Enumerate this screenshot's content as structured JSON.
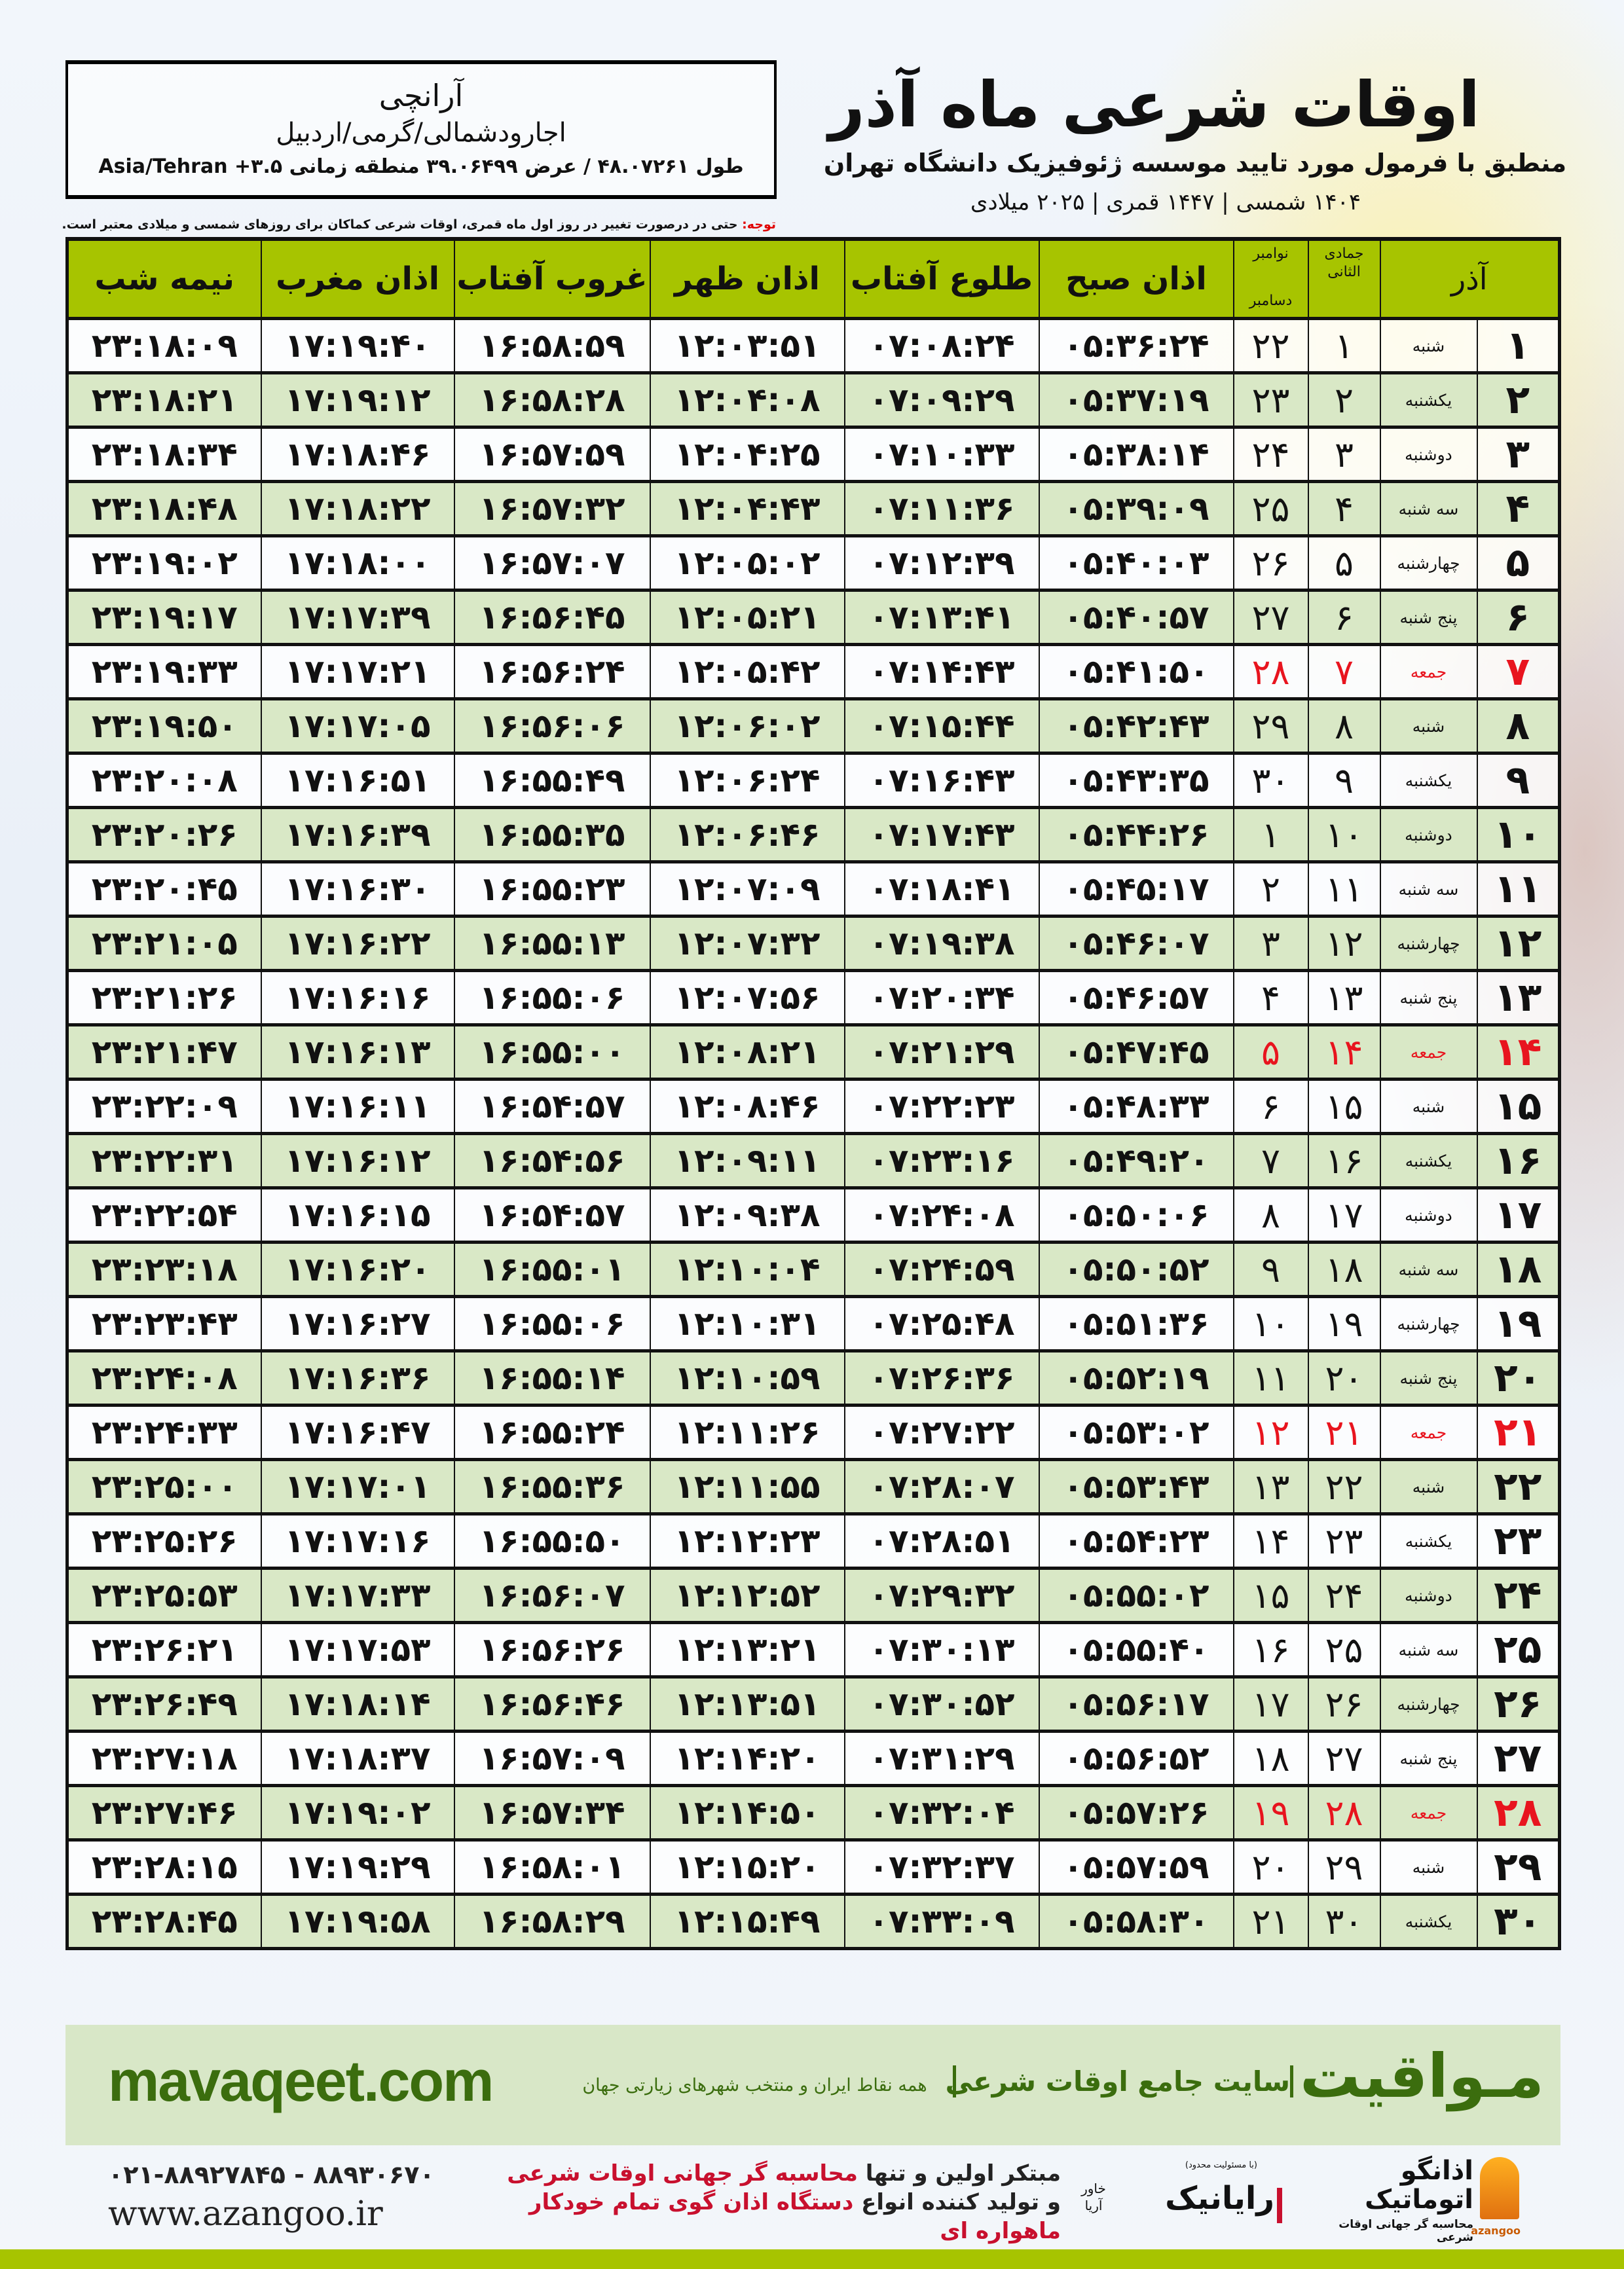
{
  "header": {
    "title": "اوقات شرعی ماه آذر",
    "subtitle": "منطبق با فرمول مورد تایید موسسه ژئوفیزیک دانشگاه تهران",
    "dates": "۱۴۰۴ شمسی | ۱۴۴۷ قمری | ۲۰۲۵ میلادی"
  },
  "location": {
    "city": "آرانچی",
    "region": "اجارودشمالی/گرمی/اردبیل",
    "coords": "طول ۴۸.۰۷۲۶۱ / عرض ۳۹.۰۶۴۹۹ منطقه زمانی ۳.۵+ Asia/Tehran"
  },
  "note": {
    "label": "توجه:",
    "text": " حتی در درصورت تغییر در روز اول ماه قمری، اوقات شرعی کماکان برای روزهای شمسی و میلادی معتبر است."
  },
  "colors": {
    "header_green": "#a7c400",
    "row_green": "#d9e8c6",
    "holiday_red": "#e8141e",
    "brand_green": "#3b6d0e"
  },
  "table": {
    "headers": {
      "azar": "آذر",
      "hijri": "جمادی الثانی",
      "greg_top": "نوامبر",
      "greg_bottom": "دسامبر",
      "fajr": "اذان صبح",
      "sunrise": "طلوع آفتاب",
      "dhuhr": "اذان ظهر",
      "sunset": "غروب آفتاب",
      "maghrib": "اذان مغرب",
      "midnight": "نیمه شب"
    },
    "rows": [
      {
        "day": "۱",
        "weekday": "شنبه",
        "hijri": "۱",
        "greg": "۲۲",
        "fajr": "۰۵:۳۶:۲۴",
        "sunrise": "۰۷:۰۸:۲۴",
        "dhuhr": "۱۲:۰۳:۵۱",
        "sunset": "۱۶:۵۸:۵۹",
        "maghrib": "۱۷:۱۹:۴۰",
        "midnight": "۲۳:۱۸:۰۹",
        "holiday": false
      },
      {
        "day": "۲",
        "weekday": "یکشنبه",
        "hijri": "۲",
        "greg": "۲۳",
        "fajr": "۰۵:۳۷:۱۹",
        "sunrise": "۰۷:۰۹:۲۹",
        "dhuhr": "۱۲:۰۴:۰۸",
        "sunset": "۱۶:۵۸:۲۸",
        "maghrib": "۱۷:۱۹:۱۲",
        "midnight": "۲۳:۱۸:۲۱",
        "holiday": false
      },
      {
        "day": "۳",
        "weekday": "دوشنبه",
        "hijri": "۳",
        "greg": "۲۴",
        "fajr": "۰۵:۳۸:۱۴",
        "sunrise": "۰۷:۱۰:۳۳",
        "dhuhr": "۱۲:۰۴:۲۵",
        "sunset": "۱۶:۵۷:۵۹",
        "maghrib": "۱۷:۱۸:۴۶",
        "midnight": "۲۳:۱۸:۳۴",
        "holiday": false
      },
      {
        "day": "۴",
        "weekday": "سه شنبه",
        "hijri": "۴",
        "greg": "۲۵",
        "fajr": "۰۵:۳۹:۰۹",
        "sunrise": "۰۷:۱۱:۳۶",
        "dhuhr": "۱۲:۰۴:۴۳",
        "sunset": "۱۶:۵۷:۳۲",
        "maghrib": "۱۷:۱۸:۲۲",
        "midnight": "۲۳:۱۸:۴۸",
        "holiday": false
      },
      {
        "day": "۵",
        "weekday": "چهارشنبه",
        "hijri": "۵",
        "greg": "۲۶",
        "fajr": "۰۵:۴۰:۰۳",
        "sunrise": "۰۷:۱۲:۳۹",
        "dhuhr": "۱۲:۰۵:۰۲",
        "sunset": "۱۶:۵۷:۰۷",
        "maghrib": "۱۷:۱۸:۰۰",
        "midnight": "۲۳:۱۹:۰۲",
        "holiday": false
      },
      {
        "day": "۶",
        "weekday": "پنج شنبه",
        "hijri": "۶",
        "greg": "۲۷",
        "fajr": "۰۵:۴۰:۵۷",
        "sunrise": "۰۷:۱۳:۴۱",
        "dhuhr": "۱۲:۰۵:۲۱",
        "sunset": "۱۶:۵۶:۴۵",
        "maghrib": "۱۷:۱۷:۳۹",
        "midnight": "۲۳:۱۹:۱۷",
        "holiday": false
      },
      {
        "day": "۷",
        "weekday": "جمعه",
        "hijri": "۷",
        "greg": "۲۸",
        "fajr": "۰۵:۴۱:۵۰",
        "sunrise": "۰۷:۱۴:۴۳",
        "dhuhr": "۱۲:۰۵:۴۲",
        "sunset": "۱۶:۵۶:۲۴",
        "maghrib": "۱۷:۱۷:۲۱",
        "midnight": "۲۳:۱۹:۳۳",
        "holiday": true
      },
      {
        "day": "۸",
        "weekday": "شنبه",
        "hijri": "۸",
        "greg": "۲۹",
        "fajr": "۰۵:۴۲:۴۳",
        "sunrise": "۰۷:۱۵:۴۴",
        "dhuhr": "۱۲:۰۶:۰۲",
        "sunset": "۱۶:۵۶:۰۶",
        "maghrib": "۱۷:۱۷:۰۵",
        "midnight": "۲۳:۱۹:۵۰",
        "holiday": false
      },
      {
        "day": "۹",
        "weekday": "یکشنبه",
        "hijri": "۹",
        "greg": "۳۰",
        "fajr": "۰۵:۴۳:۳۵",
        "sunrise": "۰۷:۱۶:۴۳",
        "dhuhr": "۱۲:۰۶:۲۴",
        "sunset": "۱۶:۵۵:۴۹",
        "maghrib": "۱۷:۱۶:۵۱",
        "midnight": "۲۳:۲۰:۰۸",
        "holiday": false
      },
      {
        "day": "۱۰",
        "weekday": "دوشنبه",
        "hijri": "۱۰",
        "greg": "۱",
        "fajr": "۰۵:۴۴:۲۶",
        "sunrise": "۰۷:۱۷:۴۳",
        "dhuhr": "۱۲:۰۶:۴۶",
        "sunset": "۱۶:۵۵:۳۵",
        "maghrib": "۱۷:۱۶:۳۹",
        "midnight": "۲۳:۲۰:۲۶",
        "holiday": false
      },
      {
        "day": "۱۱",
        "weekday": "سه شنبه",
        "hijri": "۱۱",
        "greg": "۲",
        "fajr": "۰۵:۴۵:۱۷",
        "sunrise": "۰۷:۱۸:۴۱",
        "dhuhr": "۱۲:۰۷:۰۹",
        "sunset": "۱۶:۵۵:۲۳",
        "maghrib": "۱۷:۱۶:۳۰",
        "midnight": "۲۳:۲۰:۴۵",
        "holiday": false
      },
      {
        "day": "۱۲",
        "weekday": "چهارشنبه",
        "hijri": "۱۲",
        "greg": "۳",
        "fajr": "۰۵:۴۶:۰۷",
        "sunrise": "۰۷:۱۹:۳۸",
        "dhuhr": "۱۲:۰۷:۳۲",
        "sunset": "۱۶:۵۵:۱۳",
        "maghrib": "۱۷:۱۶:۲۲",
        "midnight": "۲۳:۲۱:۰۵",
        "holiday": false
      },
      {
        "day": "۱۳",
        "weekday": "پنج شنبه",
        "hijri": "۱۳",
        "greg": "۴",
        "fajr": "۰۵:۴۶:۵۷",
        "sunrise": "۰۷:۲۰:۳۴",
        "dhuhr": "۱۲:۰۷:۵۶",
        "sunset": "۱۶:۵۵:۰۶",
        "maghrib": "۱۷:۱۶:۱۶",
        "midnight": "۲۳:۲۱:۲۶",
        "holiday": false
      },
      {
        "day": "۱۴",
        "weekday": "جمعه",
        "hijri": "۱۴",
        "greg": "۵",
        "fajr": "۰۵:۴۷:۴۵",
        "sunrise": "۰۷:۲۱:۲۹",
        "dhuhr": "۱۲:۰۸:۲۱",
        "sunset": "۱۶:۵۵:۰۰",
        "maghrib": "۱۷:۱۶:۱۳",
        "midnight": "۲۳:۲۱:۴۷",
        "holiday": true
      },
      {
        "day": "۱۵",
        "weekday": "شنبه",
        "hijri": "۱۵",
        "greg": "۶",
        "fajr": "۰۵:۴۸:۳۳",
        "sunrise": "۰۷:۲۲:۲۳",
        "dhuhr": "۱۲:۰۸:۴۶",
        "sunset": "۱۶:۵۴:۵۷",
        "maghrib": "۱۷:۱۶:۱۱",
        "midnight": "۲۳:۲۲:۰۹",
        "holiday": false
      },
      {
        "day": "۱۶",
        "weekday": "یکشنبه",
        "hijri": "۱۶",
        "greg": "۷",
        "fajr": "۰۵:۴۹:۲۰",
        "sunrise": "۰۷:۲۳:۱۶",
        "dhuhr": "۱۲:۰۹:۱۱",
        "sunset": "۱۶:۵۴:۵۶",
        "maghrib": "۱۷:۱۶:۱۲",
        "midnight": "۲۳:۲۲:۳۱",
        "holiday": false
      },
      {
        "day": "۱۷",
        "weekday": "دوشنبه",
        "hijri": "۱۷",
        "greg": "۸",
        "fajr": "۰۵:۵۰:۰۶",
        "sunrise": "۰۷:۲۴:۰۸",
        "dhuhr": "۱۲:۰۹:۳۸",
        "sunset": "۱۶:۵۴:۵۷",
        "maghrib": "۱۷:۱۶:۱۵",
        "midnight": "۲۳:۲۲:۵۴",
        "holiday": false
      },
      {
        "day": "۱۸",
        "weekday": "سه شنبه",
        "hijri": "۱۸",
        "greg": "۹",
        "fajr": "۰۵:۵۰:۵۲",
        "sunrise": "۰۷:۲۴:۵۹",
        "dhuhr": "۱۲:۱۰:۰۴",
        "sunset": "۱۶:۵۵:۰۱",
        "maghrib": "۱۷:۱۶:۲۰",
        "midnight": "۲۳:۲۳:۱۸",
        "holiday": false
      },
      {
        "day": "۱۹",
        "weekday": "چهارشنبه",
        "hijri": "۱۹",
        "greg": "۱۰",
        "fajr": "۰۵:۵۱:۳۶",
        "sunrise": "۰۷:۲۵:۴۸",
        "dhuhr": "۱۲:۱۰:۳۱",
        "sunset": "۱۶:۵۵:۰۶",
        "maghrib": "۱۷:۱۶:۲۷",
        "midnight": "۲۳:۲۳:۴۳",
        "holiday": false
      },
      {
        "day": "۲۰",
        "weekday": "پنج شنبه",
        "hijri": "۲۰",
        "greg": "۱۱",
        "fajr": "۰۵:۵۲:۱۹",
        "sunrise": "۰۷:۲۶:۳۶",
        "dhuhr": "۱۲:۱۰:۵۹",
        "sunset": "۱۶:۵۵:۱۴",
        "maghrib": "۱۷:۱۶:۳۶",
        "midnight": "۲۳:۲۴:۰۸",
        "holiday": false
      },
      {
        "day": "۲۱",
        "weekday": "جمعه",
        "hijri": "۲۱",
        "greg": "۱۲",
        "fajr": "۰۵:۵۳:۰۲",
        "sunrise": "۰۷:۲۷:۲۲",
        "dhuhr": "۱۲:۱۱:۲۶",
        "sunset": "۱۶:۵۵:۲۴",
        "maghrib": "۱۷:۱۶:۴۷",
        "midnight": "۲۳:۲۴:۳۳",
        "holiday": true
      },
      {
        "day": "۲۲",
        "weekday": "شنبه",
        "hijri": "۲۲",
        "greg": "۱۳",
        "fajr": "۰۵:۵۳:۴۳",
        "sunrise": "۰۷:۲۸:۰۷",
        "dhuhr": "۱۲:۱۱:۵۵",
        "sunset": "۱۶:۵۵:۳۶",
        "maghrib": "۱۷:۱۷:۰۱",
        "midnight": "۲۳:۲۵:۰۰",
        "holiday": false
      },
      {
        "day": "۲۳",
        "weekday": "یکشنبه",
        "hijri": "۲۳",
        "greg": "۱۴",
        "fajr": "۰۵:۵۴:۲۳",
        "sunrise": "۰۷:۲۸:۵۱",
        "dhuhr": "۱۲:۱۲:۲۳",
        "sunset": "۱۶:۵۵:۵۰",
        "maghrib": "۱۷:۱۷:۱۶",
        "midnight": "۲۳:۲۵:۲۶",
        "holiday": false
      },
      {
        "day": "۲۴",
        "weekday": "دوشنبه",
        "hijri": "۲۴",
        "greg": "۱۵",
        "fajr": "۰۵:۵۵:۰۲",
        "sunrise": "۰۷:۲۹:۳۲",
        "dhuhr": "۱۲:۱۲:۵۲",
        "sunset": "۱۶:۵۶:۰۷",
        "maghrib": "۱۷:۱۷:۳۳",
        "midnight": "۲۳:۲۵:۵۳",
        "holiday": false
      },
      {
        "day": "۲۵",
        "weekday": "سه شنبه",
        "hijri": "۲۵",
        "greg": "۱۶",
        "fajr": "۰۵:۵۵:۴۰",
        "sunrise": "۰۷:۳۰:۱۳",
        "dhuhr": "۱۲:۱۳:۲۱",
        "sunset": "۱۶:۵۶:۲۶",
        "maghrib": "۱۷:۱۷:۵۳",
        "midnight": "۲۳:۲۶:۲۱",
        "holiday": false
      },
      {
        "day": "۲۶",
        "weekday": "چهارشنبه",
        "hijri": "۲۶",
        "greg": "۱۷",
        "fajr": "۰۵:۵۶:۱۷",
        "sunrise": "۰۷:۳۰:۵۲",
        "dhuhr": "۱۲:۱۳:۵۱",
        "sunset": "۱۶:۵۶:۴۶",
        "maghrib": "۱۷:۱۸:۱۴",
        "midnight": "۲۳:۲۶:۴۹",
        "holiday": false
      },
      {
        "day": "۲۷",
        "weekday": "پنج شنبه",
        "hijri": "۲۷",
        "greg": "۱۸",
        "fajr": "۰۵:۵۶:۵۲",
        "sunrise": "۰۷:۳۱:۲۹",
        "dhuhr": "۱۲:۱۴:۲۰",
        "sunset": "۱۶:۵۷:۰۹",
        "maghrib": "۱۷:۱۸:۳۷",
        "midnight": "۲۳:۲۷:۱۸",
        "holiday": false
      },
      {
        "day": "۲۸",
        "weekday": "جمعه",
        "hijri": "۲۸",
        "greg": "۱۹",
        "fajr": "۰۵:۵۷:۲۶",
        "sunrise": "۰۷:۳۲:۰۴",
        "dhuhr": "۱۲:۱۴:۵۰",
        "sunset": "۱۶:۵۷:۳۴",
        "maghrib": "۱۷:۱۹:۰۲",
        "midnight": "۲۳:۲۷:۴۶",
        "holiday": true
      },
      {
        "day": "۲۹",
        "weekday": "شنبه",
        "hijri": "۲۹",
        "greg": "۲۰",
        "fajr": "۰۵:۵۷:۵۹",
        "sunrise": "۰۷:۳۲:۳۷",
        "dhuhr": "۱۲:۱۵:۲۰",
        "sunset": "۱۶:۵۸:۰۱",
        "maghrib": "۱۷:۱۹:۲۹",
        "midnight": "۲۳:۲۸:۱۵",
        "holiday": false
      },
      {
        "day": "۳۰",
        "weekday": "یکشنبه",
        "hijri": "۳۰",
        "greg": "۲۱",
        "fajr": "۰۵:۵۸:۳۰",
        "sunrise": "۰۷:۳۳:۰۹",
        "dhuhr": "۱۲:۱۵:۴۹",
        "sunset": "۱۶:۵۸:۲۹",
        "maghrib": "۱۷:۱۹:۵۸",
        "midnight": "۲۳:۲۸:۴۵",
        "holiday": false
      }
    ]
  },
  "footer": {
    "brand": "مـواقیت",
    "slogan": "سایت جامع اوقات شرعی",
    "slogan_sub": "همه نقاط ایران و منتخب شهرهای زیارتی جهان",
    "url": "mavaqeet.com",
    "phone": "۰۲۱-۸۸۹۲۷۸۴۵ - ۸۸۹۳۰۶۷۰",
    "site": "www.azangoo.ir",
    "promo_line1_a": "مبتکر اولین و تنها ",
    "promo_line1_b": "محاسبه گر جهانی اوقات شرعی",
    "promo_line2_a": "و تولید کننده انواع ",
    "promo_line2_b": "دستگاه اذان گوی تمام خودکار ماهواره ای",
    "raya_brand": "رایانیک",
    "raya_sub": "خاور آریا",
    "raya_tiny": "(با مسئولیت محدود)",
    "azan_brand": "اذانگو اتوماتیک",
    "azan_sub": "محاسبه گر جهانی اوقات شرعی",
    "azan_latin": "azangoo"
  }
}
